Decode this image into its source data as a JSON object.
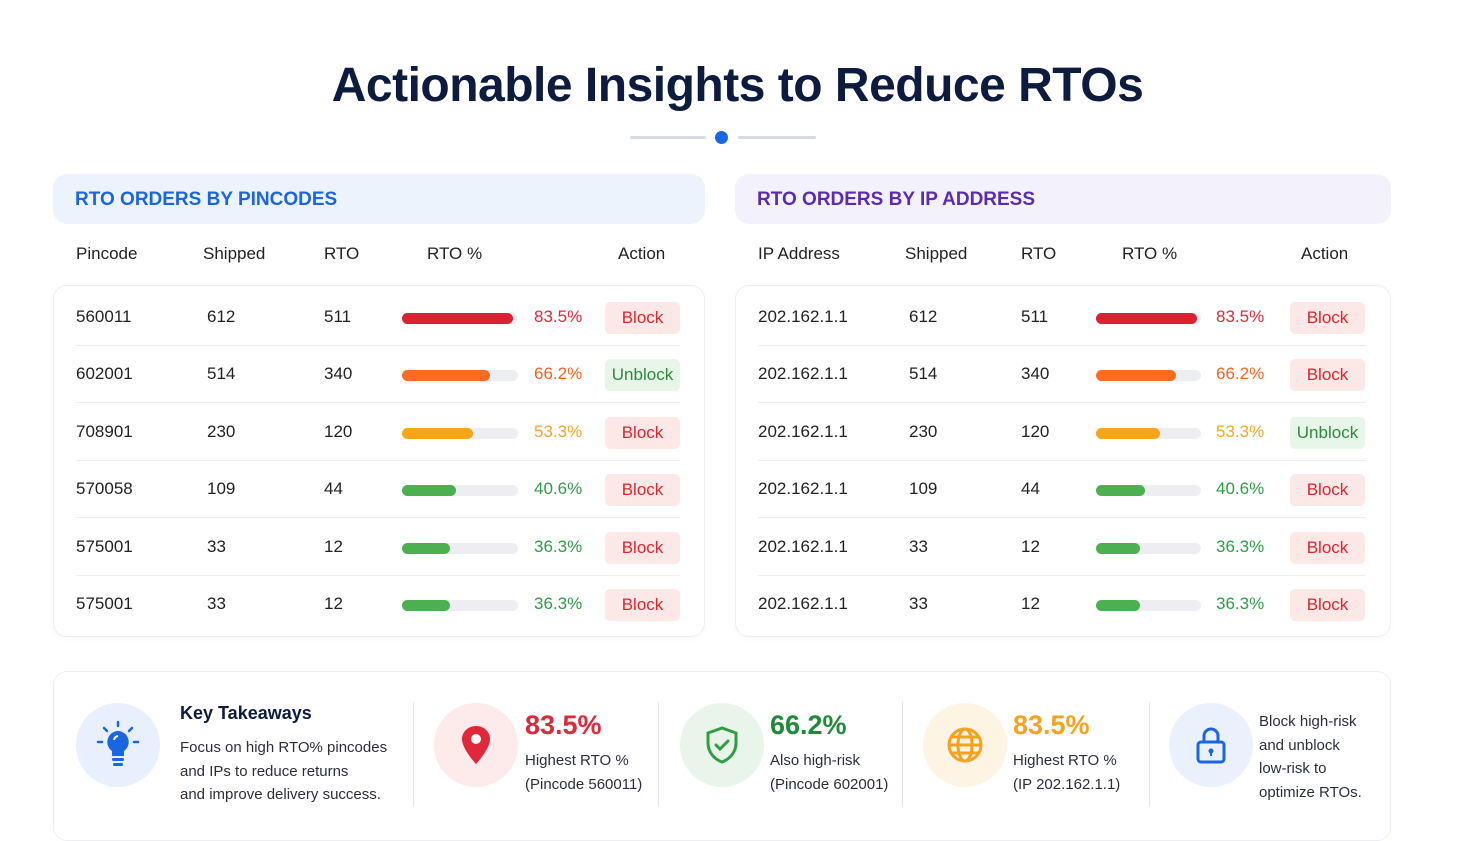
{
  "title": "Actionable Insights to Reduce RTOs",
  "colors": {
    "red": "#d92232",
    "orange": "#ff6b1f",
    "amber": "#f8a51c",
    "green": "#4caf50",
    "blue": "#1a66e0",
    "purple": "#5b2bb0"
  },
  "pincodes": {
    "heading": "RTO ORDERS BY PINCODES",
    "columns": [
      "Pincode",
      "Shipped",
      "RTO",
      "RTO %",
      "Action"
    ],
    "rows": [
      {
        "id": "560011",
        "shipped": "612",
        "rto": "511",
        "pct": "83.5%",
        "pct_value": 83.5,
        "level": "red",
        "action": "Block"
      },
      {
        "id": "602001",
        "shipped": "514",
        "rto": "340",
        "pct": "66.2%",
        "pct_value": 66.2,
        "level": "orange",
        "action": "Unblock"
      },
      {
        "id": "708901",
        "shipped": "230",
        "rto": "120",
        "pct": "53.3%",
        "pct_value": 53.3,
        "level": "amber",
        "action": "Block"
      },
      {
        "id": "570058",
        "shipped": "109",
        "rto": "44",
        "pct": "40.6%",
        "pct_value": 40.6,
        "level": "green",
        "action": "Block"
      },
      {
        "id": "575001",
        "shipped": "33",
        "rto": "12",
        "pct": "36.3%",
        "pct_value": 36.3,
        "level": "green",
        "action": "Block"
      },
      {
        "id": "575001",
        "shipped": "33",
        "rto": "12",
        "pct": "36.3%",
        "pct_value": 36.3,
        "level": "green",
        "action": "Block"
      }
    ]
  },
  "ips": {
    "heading": "RTO ORDERS BY IP ADDRESS",
    "columns": [
      "IP Address",
      "Shipped",
      "RTO",
      "RTO %",
      "Action"
    ],
    "rows": [
      {
        "id": "202.162.1.1",
        "shipped": "612",
        "rto": "511",
        "pct": "83.5%",
        "pct_value": 83.5,
        "level": "red",
        "action": "Block"
      },
      {
        "id": "202.162.1.1",
        "shipped": "514",
        "rto": "340",
        "pct": "66.2%",
        "pct_value": 66.2,
        "level": "orange",
        "action": "Block"
      },
      {
        "id": "202.162.1.1",
        "shipped": "230",
        "rto": "120",
        "pct": "53.3%",
        "pct_value": 53.3,
        "level": "amber",
        "action": "Unblock"
      },
      {
        "id": "202.162.1.1",
        "shipped": "109",
        "rto": "44",
        "pct": "40.6%",
        "pct_value": 40.6,
        "level": "green",
        "action": "Block"
      },
      {
        "id": "202.162.1.1",
        "shipped": "33",
        "rto": "12",
        "pct": "36.3%",
        "pct_value": 36.3,
        "level": "green",
        "action": "Block"
      },
      {
        "id": "202.162.1.1",
        "shipped": "33",
        "rto": "12",
        "pct": "36.3%",
        "pct_value": 36.3,
        "level": "green",
        "action": "Block"
      }
    ]
  },
  "takeaways": {
    "heading": "Key Takeaways",
    "text": [
      "Focus on high RTO% pincodes",
      "and IPs to reduce returns",
      "and improve delivery success."
    ],
    "stats": [
      {
        "value": "83.5%",
        "label": "Highest RTO %",
        "sub": "(Pincode 560011)",
        "icon": "map-pin-icon"
      },
      {
        "value": "66.2%",
        "label": "Also high-risk",
        "sub": "(Pincode 602001)",
        "icon": "shield-check-icon"
      },
      {
        "value": "83.5%",
        "label": "Highest RTO %",
        "sub": "(IP 202.162.1.1)",
        "icon": "globe-icon"
      }
    ],
    "final": [
      "Block high-risk",
      "and unblock",
      "low-risk to",
      "optimize RTOs."
    ]
  }
}
